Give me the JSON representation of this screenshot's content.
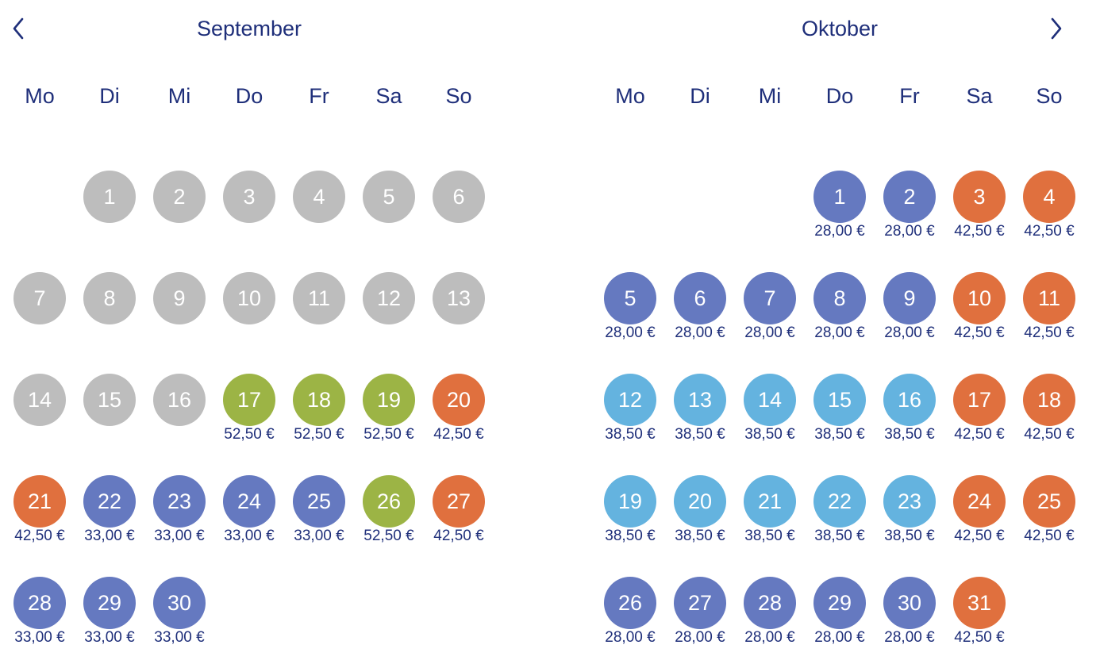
{
  "nav": {
    "prev_icon": "chevron-left-icon",
    "next_icon": "chevron-right-icon"
  },
  "colors": {
    "disabled": "#bdbdbd",
    "green": "#9cb445",
    "orange": "#e0703e",
    "blue": "#6579c0",
    "lightblue": "#64b3df",
    "text": "#1f2f7a"
  },
  "weekdays": [
    "Mo",
    "Di",
    "Mi",
    "Do",
    "Fr",
    "Sa",
    "So"
  ],
  "months": [
    {
      "title": "September",
      "start_weekday": 1,
      "days": [
        {
          "d": "1",
          "c": "disabled",
          "p": ""
        },
        {
          "d": "2",
          "c": "disabled",
          "p": ""
        },
        {
          "d": "3",
          "c": "disabled",
          "p": ""
        },
        {
          "d": "4",
          "c": "disabled",
          "p": ""
        },
        {
          "d": "5",
          "c": "disabled",
          "p": ""
        },
        {
          "d": "6",
          "c": "disabled",
          "p": ""
        },
        {
          "d": "7",
          "c": "disabled",
          "p": ""
        },
        {
          "d": "8",
          "c": "disabled",
          "p": ""
        },
        {
          "d": "9",
          "c": "disabled",
          "p": ""
        },
        {
          "d": "10",
          "c": "disabled",
          "p": ""
        },
        {
          "d": "11",
          "c": "disabled",
          "p": ""
        },
        {
          "d": "12",
          "c": "disabled",
          "p": ""
        },
        {
          "d": "13",
          "c": "disabled",
          "p": ""
        },
        {
          "d": "14",
          "c": "disabled",
          "p": ""
        },
        {
          "d": "15",
          "c": "disabled",
          "p": ""
        },
        {
          "d": "16",
          "c": "disabled",
          "p": ""
        },
        {
          "d": "17",
          "c": "green",
          "p": "52,50 €"
        },
        {
          "d": "18",
          "c": "green",
          "p": "52,50 €"
        },
        {
          "d": "19",
          "c": "green",
          "p": "52,50 €"
        },
        {
          "d": "20",
          "c": "orange",
          "p": "42,50 €"
        },
        {
          "d": "21",
          "c": "orange",
          "p": "42,50 €"
        },
        {
          "d": "22",
          "c": "blue",
          "p": "33,00 €"
        },
        {
          "d": "23",
          "c": "blue",
          "p": "33,00 €"
        },
        {
          "d": "24",
          "c": "blue",
          "p": "33,00 €"
        },
        {
          "d": "25",
          "c": "blue",
          "p": "33,00 €"
        },
        {
          "d": "26",
          "c": "green",
          "p": "52,50 €"
        },
        {
          "d": "27",
          "c": "orange",
          "p": "42,50 €"
        },
        {
          "d": "28",
          "c": "blue",
          "p": "33,00 €"
        },
        {
          "d": "29",
          "c": "blue",
          "p": "33,00 €"
        },
        {
          "d": "30",
          "c": "blue",
          "p": "33,00 €"
        }
      ]
    },
    {
      "title": "Oktober",
      "start_weekday": 3,
      "days": [
        {
          "d": "1",
          "c": "blue",
          "p": "28,00 €"
        },
        {
          "d": "2",
          "c": "blue",
          "p": "28,00 €"
        },
        {
          "d": "3",
          "c": "orange",
          "p": "42,50 €"
        },
        {
          "d": "4",
          "c": "orange",
          "p": "42,50 €"
        },
        {
          "d": "5",
          "c": "blue",
          "p": "28,00 €"
        },
        {
          "d": "6",
          "c": "blue",
          "p": "28,00 €"
        },
        {
          "d": "7",
          "c": "blue",
          "p": "28,00 €"
        },
        {
          "d": "8",
          "c": "blue",
          "p": "28,00 €"
        },
        {
          "d": "9",
          "c": "blue",
          "p": "28,00 €"
        },
        {
          "d": "10",
          "c": "orange",
          "p": "42,50 €"
        },
        {
          "d": "11",
          "c": "orange",
          "p": "42,50 €"
        },
        {
          "d": "12",
          "c": "lightblue",
          "p": "38,50 €"
        },
        {
          "d": "13",
          "c": "lightblue",
          "p": "38,50 €"
        },
        {
          "d": "14",
          "c": "lightblue",
          "p": "38,50 €"
        },
        {
          "d": "15",
          "c": "lightblue",
          "p": "38,50 €"
        },
        {
          "d": "16",
          "c": "lightblue",
          "p": "38,50 €"
        },
        {
          "d": "17",
          "c": "orange",
          "p": "42,50 €"
        },
        {
          "d": "18",
          "c": "orange",
          "p": "42,50 €"
        },
        {
          "d": "19",
          "c": "lightblue",
          "p": "38,50 €"
        },
        {
          "d": "20",
          "c": "lightblue",
          "p": "38,50 €"
        },
        {
          "d": "21",
          "c": "lightblue",
          "p": "38,50 €"
        },
        {
          "d": "22",
          "c": "lightblue",
          "p": "38,50 €"
        },
        {
          "d": "23",
          "c": "lightblue",
          "p": "38,50 €"
        },
        {
          "d": "24",
          "c": "orange",
          "p": "42,50 €"
        },
        {
          "d": "25",
          "c": "orange",
          "p": "42,50 €"
        },
        {
          "d": "26",
          "c": "blue",
          "p": "28,00 €"
        },
        {
          "d": "27",
          "c": "blue",
          "p": "28,00 €"
        },
        {
          "d": "28",
          "c": "blue",
          "p": "28,00 €"
        },
        {
          "d": "29",
          "c": "blue",
          "p": "28,00 €"
        },
        {
          "d": "30",
          "c": "blue",
          "p": "28,00 €"
        },
        {
          "d": "31",
          "c": "orange",
          "p": "42,50 €"
        }
      ]
    }
  ]
}
